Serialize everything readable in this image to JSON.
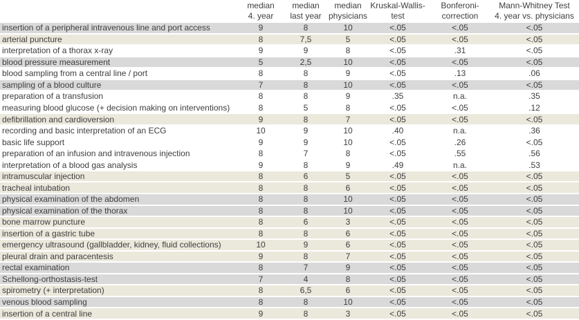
{
  "colors": {
    "gray": "#d9d9d9",
    "beige": "#ebe8dc",
    "white": "#ffffff",
    "text": "#3d3d3d"
  },
  "table": {
    "headers": [
      {
        "line1": "",
        "line2": ""
      },
      {
        "line1": "median",
        "line2": "4. year"
      },
      {
        "line1": "median",
        "line2": "last year"
      },
      {
        "line1": "median",
        "line2": "physicians"
      },
      {
        "line1": "Kruskal-Wallis-",
        "line2": "test"
      },
      {
        "line1": "Bonferoni-",
        "line2": "correction"
      },
      {
        "line1": "Mann-Whitney Test",
        "line2": "4. year vs. physicians"
      }
    ],
    "rows": [
      {
        "name": "insertion of a peripheral intravenous line and port access",
        "shade": "gray",
        "values": [
          "9",
          "8",
          "10",
          "<.05",
          "<.05",
          "<.05"
        ]
      },
      {
        "name": "arterial puncture",
        "shade": "beige",
        "values": [
          "8",
          "7,5",
          "5",
          "<.05",
          "<.05",
          "<.05"
        ]
      },
      {
        "name": "interpretation of a thorax x-ray",
        "shade": "white",
        "values": [
          "9",
          "9",
          "8",
          "<.05",
          ".31",
          "<.05"
        ]
      },
      {
        "name": "blood pressure measurement",
        "shade": "gray",
        "values": [
          "5",
          "2,5",
          "10",
          "<.05",
          "<.05",
          "<.05"
        ]
      },
      {
        "name": "blood sampling from a central line / port",
        "shade": "white",
        "values": [
          "8",
          "8",
          "9",
          "<.05",
          ".13",
          ".06"
        ]
      },
      {
        "name": "sampling of a blood culture",
        "shade": "gray",
        "values": [
          "7",
          "8",
          "10",
          "<.05",
          "<.05",
          "<.05"
        ]
      },
      {
        "name": "preparation of a transfusion",
        "shade": "white",
        "values": [
          "8",
          "8",
          "9",
          ".35",
          "n.a.",
          ".35"
        ]
      },
      {
        "name": "measuring blood glucose (+ decision making on interventions)",
        "shade": "white",
        "values": [
          "8",
          "5",
          "8",
          "<.05",
          "<.05",
          ".12"
        ]
      },
      {
        "name": "defibrillation and cardioversion",
        "shade": "beige",
        "values": [
          "9",
          "8",
          "7",
          "<.05",
          "<.05",
          "<.05"
        ]
      },
      {
        "name": "recording and basic interpretation of an ECG",
        "shade": "white",
        "values": [
          "10",
          "9",
          "10",
          ".40",
          "n.a.",
          ".36"
        ]
      },
      {
        "name": "basic life support",
        "shade": "white",
        "values": [
          "9",
          "9",
          "10",
          "<.05",
          ".26",
          "<.05"
        ]
      },
      {
        "name": "preparation of an infusion and intravenous injection",
        "shade": "white",
        "values": [
          "8",
          "7",
          "8",
          "<.05",
          ".55",
          ".56"
        ]
      },
      {
        "name": "interpretation of a blood gas analysis",
        "shade": "white",
        "values": [
          "9",
          "8",
          "9",
          ".49",
          "n.a.",
          ".53"
        ]
      },
      {
        "name": "intramuscular injection",
        "shade": "beige",
        "values": [
          "8",
          "6",
          "5",
          "<.05",
          "<.05",
          "<.05"
        ]
      },
      {
        "name": "tracheal intubation",
        "shade": "beige",
        "values": [
          "8",
          "8",
          "6",
          "<.05",
          "<.05",
          "<.05"
        ]
      },
      {
        "name": "physical examination of the abdomen",
        "shade": "gray",
        "values": [
          "8",
          "8",
          "10",
          "<.05",
          "<.05",
          "<.05"
        ]
      },
      {
        "name": "physical examination of the thorax",
        "shade": "gray",
        "values": [
          "8",
          "8",
          "10",
          "<.05",
          "<.05",
          "<.05"
        ]
      },
      {
        "name": "bone marrow puncture",
        "shade": "beige",
        "values": [
          "8",
          "6",
          "3",
          "<.05",
          "<.05",
          "<.05"
        ]
      },
      {
        "name": "insertion of a gastric tube",
        "shade": "beige",
        "values": [
          "8",
          "8",
          "6",
          "<.05",
          "<.05",
          "<.05"
        ]
      },
      {
        "name": "emergency ultrasound (gallbladder, kidney, fluid collections)",
        "shade": "beige",
        "values": [
          "10",
          "9",
          "6",
          "<.05",
          "<.05",
          "<.05"
        ]
      },
      {
        "name": "pleural drain and paracentesis",
        "shade": "beige",
        "values": [
          "9",
          "8",
          "7",
          "<.05",
          "<.05",
          "<.05"
        ]
      },
      {
        "name": "rectal examination",
        "shade": "gray",
        "values": [
          "8",
          "7",
          "9",
          "<.05",
          "<.05",
          "<.05"
        ]
      },
      {
        "name": "Schellong-orthostasis-test",
        "shade": "gray",
        "values": [
          "7",
          "4",
          "8",
          "<.05",
          "<.05",
          "<.05"
        ]
      },
      {
        "name": "spirometry (+ interpretation)",
        "shade": "beige",
        "values": [
          "8",
          "6,5",
          "6",
          "<.05",
          "<.05",
          "<.05"
        ]
      },
      {
        "name": "venous blood sampling",
        "shade": "gray",
        "values": [
          "8",
          "8",
          "10",
          "<.05",
          "<.05",
          "<.05"
        ]
      },
      {
        "name": "insertion of a central line",
        "shade": "beige",
        "values": [
          "9",
          "8",
          "3",
          "<.05",
          "<.05",
          "<.05"
        ]
      }
    ]
  }
}
